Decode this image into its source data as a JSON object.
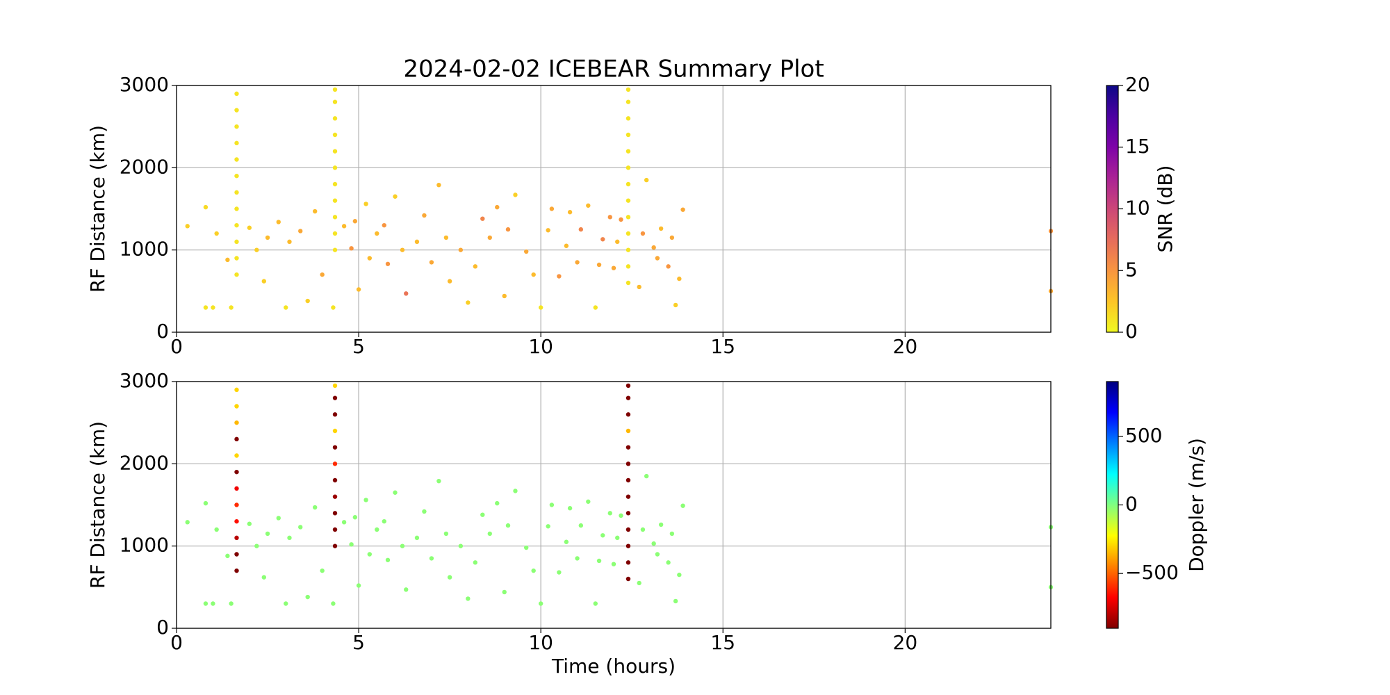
{
  "chart_data": [
    {
      "type": "scatter",
      "title": "2024-02-02 ICEBEAR Summary Plot",
      "ylabel": "RF Distance (km)",
      "xlim": [
        0,
        24
      ],
      "xticks": [
        0,
        5,
        10,
        15,
        20
      ],
      "ylim": [
        0,
        3000
      ],
      "yticks": [
        0,
        1000,
        2000,
        3000
      ],
      "grid": true,
      "x": [
        0.3,
        0.8,
        0.8,
        1,
        1.1,
        1.4,
        1.5,
        2,
        2.2,
        2.4,
        2.5,
        2.8,
        3,
        3.1,
        3.4,
        3.6,
        3.8,
        4,
        4.3,
        4.6,
        4.8,
        5,
        5.2,
        5.5,
        5.8,
        6,
        6.3,
        6.6,
        7,
        7.2,
        7.5,
        7.8,
        8,
        8.4,
        8.8,
        9,
        9.3,
        9.6,
        10,
        10.2,
        10.5,
        10.8,
        11,
        11.3,
        11.5,
        11.7,
        12,
        12.2,
        12.7,
        12.9,
        13.1,
        13.3,
        13.5,
        13.7,
        13.9,
        24,
        24,
        4.9,
        5.3,
        5.7,
        6.2,
        6.8,
        7.4,
        8.2,
        8.6,
        9.1,
        9.8,
        10.3,
        10.7,
        11.1,
        11.6,
        12.1,
        12.8,
        13.2,
        13.6,
        13.8,
        11.9,
        1.65,
        1.65,
        1.65,
        1.65,
        1.65,
        1.65,
        1.65,
        1.65,
        1.65,
        1.65,
        1.65,
        1.65,
        4.35,
        4.35,
        4.35,
        4.35,
        4.35,
        4.35,
        4.35,
        4.35,
        4.35,
        4.35,
        4.35,
        12.4,
        12.4,
        12.4,
        12.4,
        12.4,
        12.4,
        12.4,
        12.4,
        12.4,
        12.4,
        12.4,
        12.4,
        12.4
      ],
      "values": [
        1290,
        1520,
        300,
        300,
        1200,
        880,
        300,
        1270,
        1000,
        620,
        1150,
        1340,
        300,
        1100,
        1230,
        380,
        1470,
        700,
        300,
        1290,
        1020,
        520,
        1560,
        1200,
        830,
        1650,
        470,
        1100,
        850,
        1790,
        620,
        1000,
        360,
        1380,
        1520,
        440,
        1670,
        980,
        300,
        1240,
        680,
        1460,
        850,
        1540,
        300,
        1130,
        780,
        1370,
        550,
        1850,
        1030,
        1260,
        800,
        330,
        1490,
        1230,
        500,
        1350,
        900,
        1300,
        1000,
        1420,
        1150,
        800,
        1150,
        1250,
        700,
        1500,
        1050,
        1250,
        820,
        1100,
        1200,
        900,
        1150,
        650,
        1400,
        700,
        900,
        1100,
        1300,
        1500,
        1700,
        1900,
        2100,
        2300,
        2500,
        2700,
        2900,
        1000,
        1200,
        1400,
        1600,
        1800,
        2000,
        2200,
        2400,
        2600,
        2800,
        2950,
        600,
        800,
        1000,
        1200,
        1400,
        1600,
        1800,
        2000,
        2200,
        2400,
        2600,
        2800,
        2950
      ],
      "c": [
        2,
        1.5,
        1,
        1,
        2,
        3,
        1,
        2,
        2,
        2,
        3,
        3,
        1,
        3,
        4,
        2,
        3,
        4,
        1,
        3,
        5,
        3,
        2,
        3,
        5,
        2,
        7,
        3,
        4,
        3,
        3,
        4,
        2,
        6,
        4,
        3,
        2,
        4,
        1,
        3,
        5,
        3,
        4,
        3,
        1,
        6,
        4,
        5,
        3,
        2,
        4,
        3,
        5,
        2,
        4,
        5,
        4,
        4,
        3,
        5,
        3,
        4,
        3,
        3,
        4,
        5,
        3,
        4,
        3,
        6,
        4,
        3,
        5,
        4,
        4,
        3,
        5,
        1,
        1,
        1,
        1,
        1,
        1,
        1,
        1,
        1,
        1,
        1,
        1,
        1,
        1,
        1,
        1,
        1,
        1,
        1,
        1,
        1,
        1,
        1,
        1,
        1,
        1,
        1,
        1,
        1,
        1,
        1,
        1,
        1,
        1,
        1,
        1
      ],
      "colorbar": {
        "label": "SNR (dB)",
        "lim": [
          0,
          20
        ],
        "ticks": [
          0,
          5,
          10,
          15,
          20
        ],
        "colors": [
          "#f0f921",
          "#fdc527",
          "#f89540",
          "#e66c5c",
          "#cc4778",
          "#aa2395",
          "#7e03a8",
          "#4c02a1",
          "#0d0887"
        ]
      }
    },
    {
      "type": "scatter",
      "ylabel": "RF Distance (km)",
      "xlabel": "Time (hours)",
      "xlim": [
        0,
        24
      ],
      "xticks": [
        0,
        5,
        10,
        15,
        20
      ],
      "ylim": [
        0,
        3000
      ],
      "yticks": [
        0,
        1000,
        2000,
        3000
      ],
      "grid": true,
      "x": [
        0.3,
        0.8,
        0.8,
        1,
        1.1,
        1.4,
        1.5,
        2,
        2.2,
        2.4,
        2.5,
        2.8,
        3,
        3.1,
        3.4,
        3.6,
        3.8,
        4,
        4.3,
        4.6,
        4.8,
        5,
        5.2,
        5.5,
        5.8,
        6,
        6.3,
        6.6,
        7,
        7.2,
        7.5,
        7.8,
        8,
        8.4,
        8.8,
        9,
        9.3,
        9.6,
        10,
        10.2,
        10.5,
        10.8,
        11,
        11.3,
        11.5,
        11.7,
        12,
        12.2,
        12.7,
        12.9,
        13.1,
        13.3,
        13.5,
        13.7,
        13.9,
        24,
        24,
        4.9,
        5.3,
        5.7,
        6.2,
        6.8,
        7.4,
        8.2,
        8.6,
        9.1,
        9.8,
        10.3,
        10.7,
        11.1,
        11.6,
        12.1,
        12.8,
        13.2,
        13.6,
        13.8,
        11.9,
        1.65,
        1.65,
        1.65,
        1.65,
        1.65,
        1.65,
        1.65,
        1.65,
        1.65,
        1.65,
        1.65,
        1.65,
        4.35,
        4.35,
        4.35,
        4.35,
        4.35,
        4.35,
        4.35,
        4.35,
        4.35,
        4.35,
        4.35,
        12.4,
        12.4,
        12.4,
        12.4,
        12.4,
        12.4,
        12.4,
        12.4,
        12.4,
        12.4,
        12.4,
        12.4,
        12.4
      ],
      "values": [
        1290,
        1520,
        300,
        300,
        1200,
        880,
        300,
        1270,
        1000,
        620,
        1150,
        1340,
        300,
        1100,
        1230,
        380,
        1470,
        700,
        300,
        1290,
        1020,
        520,
        1560,
        1200,
        830,
        1650,
        470,
        1100,
        850,
        1790,
        620,
        1000,
        360,
        1380,
        1520,
        440,
        1670,
        980,
        300,
        1240,
        680,
        1460,
        850,
        1540,
        300,
        1130,
        780,
        1370,
        550,
        1850,
        1030,
        1260,
        800,
        330,
        1490,
        1230,
        500,
        1350,
        900,
        1300,
        1000,
        1420,
        1150,
        800,
        1150,
        1250,
        700,
        1500,
        1050,
        1250,
        820,
        1100,
        1200,
        900,
        1150,
        650,
        1400,
        700,
        900,
        1100,
        1300,
        1500,
        1700,
        1900,
        2100,
        2300,
        2500,
        2700,
        2900,
        1000,
        1200,
        1400,
        1600,
        1800,
        2000,
        2200,
        2400,
        2600,
        2800,
        2950,
        600,
        800,
        1000,
        1200,
        1400,
        1600,
        1800,
        2000,
        2200,
        2400,
        2600,
        2800,
        2950
      ],
      "c": [
        -20,
        -20,
        -20,
        -20,
        -20,
        -20,
        -20,
        -20,
        -20,
        -20,
        -20,
        -20,
        -20,
        -20,
        -20,
        -20,
        -20,
        -20,
        -20,
        -20,
        -20,
        -20,
        -20,
        -20,
        -20,
        -20,
        -20,
        -20,
        -20,
        -20,
        -20,
        -20,
        -20,
        -20,
        -20,
        -20,
        -20,
        -20,
        -20,
        -20,
        -20,
        -20,
        -20,
        -20,
        -20,
        -20,
        -20,
        -20,
        -20,
        -20,
        -20,
        -20,
        -20,
        -20,
        -20,
        -20,
        -20,
        -20,
        -20,
        -20,
        -20,
        -20,
        -20,
        -20,
        -20,
        -20,
        -20,
        -20,
        -20,
        -20,
        -20,
        -20,
        -20,
        -20,
        -20,
        -20,
        -20,
        -900,
        -900,
        -800,
        -650,
        -600,
        -700,
        -900,
        -300,
        -900,
        -350,
        -300,
        -300,
        -900,
        -900,
        -900,
        -850,
        -900,
        -600,
        -900,
        -300,
        -900,
        -900,
        -300,
        -900,
        -900,
        -900,
        -900,
        -900,
        -900,
        -900,
        -900,
        -900,
        -350,
        -900,
        -900,
        -900
      ],
      "colorbar": {
        "label": "Doppler (m/s)",
        "lim": [
          -900,
          900
        ],
        "ticks": [
          {
            "value": -500,
            "label": "−500"
          },
          0,
          500
        ],
        "colors": [
          "#7f0000",
          "#ff0000",
          "#ff8000",
          "#ffff00",
          "#80ff80",
          "#00ffff",
          "#0080ff",
          "#0000ff",
          "#00007f"
        ]
      }
    }
  ]
}
